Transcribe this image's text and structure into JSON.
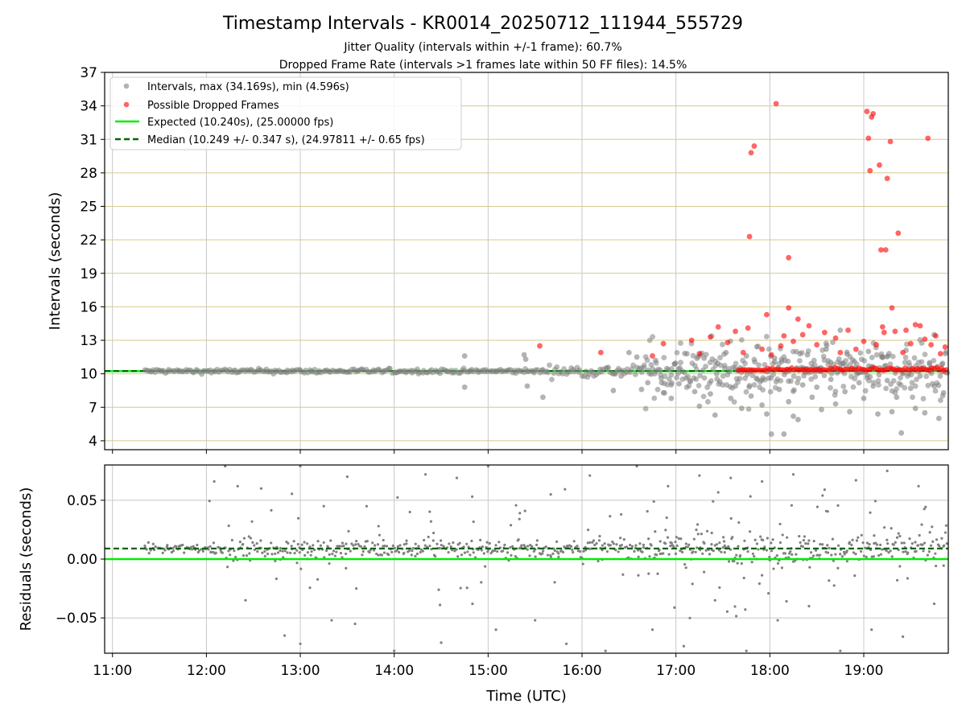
{
  "figure": {
    "title": "Timestamp Intervals - KR0014_20250712_111944_555729",
    "subtitle_1": "Jitter Quality (intervals within +/-1 frame): 60.7%",
    "subtitle_2": "Dropped Frame Rate (intervals >1 frames late within 50 FF files): 14.5%"
  },
  "colors": {
    "intervals": "#808080",
    "dropped": "#ff0000",
    "expected": "#00ee00",
    "median": "#006400",
    "hgrid_top": "#d8c98a",
    "grid": "#c8c8c8"
  },
  "chart_data": [
    {
      "type": "scatter",
      "ylabel": "Intervals (seconds)",
      "xlim": [
        "10:55",
        "19:54"
      ],
      "ylim": [
        3.2,
        37
      ],
      "x_ticks": [
        "11:00",
        "12:00",
        "13:00",
        "14:00",
        "15:00",
        "16:00",
        "17:00",
        "18:00",
        "19:00"
      ],
      "y_ticks": [
        4,
        7,
        10,
        13,
        16,
        19,
        22,
        25,
        28,
        31,
        34,
        37
      ],
      "y_ticklabels": [
        "4",
        "7",
        "10",
        "13",
        "16",
        "19",
        "22",
        "25",
        "28",
        "31",
        "34",
        "37"
      ],
      "grid": true,
      "legend_position": "top-left",
      "legend": {
        "intervals": "Intervals, max (34.169s), min (4.596s)",
        "dropped": "Possible Dropped Frames",
        "expected": "Expected (10.240s), (25.00000 fps)",
        "median": "Median (10.249 +/- 0.347 s), (24.97811 +/- 0.65 fps)"
      },
      "expected_value": 10.24,
      "median_value": 10.249,
      "series": [
        {
          "name": "Intervals, max (34.169s), min (4.596s)",
          "points": [
            [
              "14:45",
              11.6
            ],
            [
              "14:45",
              8.8
            ],
            [
              "15:23",
              11.7
            ],
            [
              "15:24",
              11.3
            ],
            [
              "15:25",
              8.9
            ],
            [
              "15:35",
              7.9
            ],
            [
              "16:20",
              8.5
            ],
            [
              "16:25",
              9.8
            ],
            [
              "16:30",
              11.9
            ],
            [
              "16:35",
              11.5
            ],
            [
              "16:38",
              8.6
            ],
            [
              "16:42",
              9.2
            ],
            [
              "16:47",
              11.2
            ],
            [
              "16:52",
              8.3
            ],
            [
              "16:57",
              7.8
            ],
            [
              "17:02",
              9.1
            ],
            [
              "17:07",
              11.8
            ],
            [
              "17:12",
              8.4
            ],
            [
              "17:15",
              7.1
            ],
            [
              "17:18",
              11.4
            ],
            [
              "17:22",
              8.2
            ],
            [
              "17:25",
              6.3
            ],
            [
              "17:28",
              9.3
            ],
            [
              "17:32",
              11.9
            ],
            [
              "17:35",
              7.8
            ],
            [
              "17:38",
              8.9
            ],
            [
              "17:42",
              6.9
            ],
            [
              "17:45",
              11.6
            ],
            [
              "17:48",
              8.0
            ],
            [
              "17:52",
              9.5
            ],
            [
              "17:55",
              7.2
            ],
            [
              "17:58",
              6.4
            ],
            [
              "18:01",
              4.6
            ],
            [
              "18:03",
              11.4
            ],
            [
              "18:06",
              8.6
            ],
            [
              "18:09",
              4.6
            ],
            [
              "18:12",
              7.5
            ],
            [
              "18:15",
              6.2
            ],
            [
              "18:18",
              5.9
            ],
            [
              "18:21",
              9.0
            ],
            [
              "18:24",
              11.7
            ],
            [
              "18:27",
              7.9
            ],
            [
              "18:30",
              8.8
            ],
            [
              "18:33",
              6.8
            ],
            [
              "18:36",
              12.2
            ],
            [
              "18:39",
              9.5
            ],
            [
              "18:42",
              7.3
            ],
            [
              "18:45",
              13.9
            ],
            [
              "18:48",
              8.4
            ],
            [
              "18:51",
              6.6
            ],
            [
              "18:54",
              11.1
            ],
            [
              "18:57",
              9.2
            ],
            [
              "19:00",
              7.8
            ],
            [
              "19:03",
              12.0
            ],
            [
              "19:06",
              8.9
            ],
            [
              "19:09",
              6.4
            ],
            [
              "19:12",
              11.5
            ],
            [
              "19:15",
              9.4
            ],
            [
              "19:18",
              6.6
            ],
            [
              "19:21",
              7.9
            ],
            [
              "19:24",
              4.7
            ],
            [
              "19:27",
              12.1
            ],
            [
              "19:30",
              8.7
            ],
            [
              "19:33",
              6.9
            ],
            [
              "19:36",
              9.8
            ],
            [
              "19:39",
              6.5
            ],
            [
              "19:42",
              11.0
            ],
            [
              "19:45",
              13.5
            ],
            [
              "19:48",
              6.0
            ],
            [
              "19:51",
              8.3
            ]
          ]
        },
        {
          "name": "Possible Dropped Frames",
          "points": [
            [
              "15:33",
              12.5
            ],
            [
              "16:12",
              11.9
            ],
            [
              "16:45",
              11.6
            ],
            [
              "16:52",
              12.7
            ],
            [
              "17:10",
              13.0
            ],
            [
              "17:15",
              11.8
            ],
            [
              "17:22",
              13.3
            ],
            [
              "17:27",
              14.2
            ],
            [
              "17:33",
              12.8
            ],
            [
              "17:38",
              13.8
            ],
            [
              "17:43",
              11.9
            ],
            [
              "17:46",
              14.1
            ],
            [
              "17:47",
              22.3
            ],
            [
              "17:48",
              29.8
            ],
            [
              "17:50",
              30.4
            ],
            [
              "17:55",
              12.2
            ],
            [
              "17:58",
              15.3
            ],
            [
              "18:01",
              11.7
            ],
            [
              "18:04",
              34.2
            ],
            [
              "18:07",
              12.5
            ],
            [
              "18:09",
              13.4
            ],
            [
              "18:12",
              20.4
            ],
            [
              "18:12",
              15.9
            ],
            [
              "18:15",
              12.9
            ],
            [
              "18:18",
              14.9
            ],
            [
              "18:21",
              13.5
            ],
            [
              "18:25",
              14.3
            ],
            [
              "18:30",
              12.6
            ],
            [
              "18:35",
              13.7
            ],
            [
              "18:42",
              13.2
            ],
            [
              "18:45",
              11.9
            ],
            [
              "18:50",
              13.9
            ],
            [
              "18:55",
              12.2
            ],
            [
              "19:00",
              12.9
            ],
            [
              "19:02",
              33.5
            ],
            [
              "19:03",
              31.1
            ],
            [
              "19:04",
              28.2
            ],
            [
              "19:05",
              33.0
            ],
            [
              "19:06",
              33.3
            ],
            [
              "19:08",
              12.6
            ],
            [
              "19:10",
              28.7
            ],
            [
              "19:11",
              21.1
            ],
            [
              "19:12",
              14.2
            ],
            [
              "19:13",
              13.7
            ],
            [
              "19:14",
              21.1
            ],
            [
              "19:15",
              27.5
            ],
            [
              "19:17",
              30.8
            ],
            [
              "19:18",
              15.9
            ],
            [
              "19:20",
              13.8
            ],
            [
              "19:22",
              22.6
            ],
            [
              "19:25",
              11.9
            ],
            [
              "19:27",
              13.9
            ],
            [
              "19:30",
              12.7
            ],
            [
              "19:33",
              14.4
            ],
            [
              "19:36",
              14.3
            ],
            [
              "19:39",
              13.1
            ],
            [
              "19:41",
              31.1
            ],
            [
              "19:43",
              12.6
            ],
            [
              "19:46",
              13.4
            ],
            [
              "19:49",
              11.8
            ],
            [
              "19:52",
              12.4
            ]
          ]
        }
      ]
    },
    {
      "type": "scatter",
      "xlabel": "Time (UTC)",
      "ylabel": "Residuals (seconds)",
      "xlim": [
        "10:55",
        "19:54"
      ],
      "ylim": [
        -0.08,
        0.08
      ],
      "x_ticks": [
        "11:00",
        "12:00",
        "13:00",
        "14:00",
        "15:00",
        "16:00",
        "17:00",
        "18:00",
        "19:00"
      ],
      "y_ticks": [
        -0.05,
        0.0,
        0.05
      ],
      "y_ticklabels": [
        "−0.05",
        "0.00",
        "0.05"
      ],
      "grid": true,
      "expected_value": 0.0,
      "median_value": 0.009,
      "series": [
        {
          "name": "Residuals",
          "points": [
            [
              "12:05",
              0.066
            ],
            [
              "12:12",
              0.079
            ],
            [
              "12:20",
              0.062
            ],
            [
              "12:25",
              -0.035
            ],
            [
              "12:35",
              0.06
            ],
            [
              "12:50",
              -0.065
            ],
            [
              "13:00",
              0.079
            ],
            [
              "13:00",
              -0.072
            ],
            [
              "13:15",
              0.045
            ],
            [
              "13:20",
              -0.052
            ],
            [
              "13:30",
              0.07
            ],
            [
              "13:35",
              -0.055
            ],
            [
              "13:50",
              0.028
            ],
            [
              "14:00",
              -0.078
            ],
            [
              "14:10",
              0.04
            ],
            [
              "14:20",
              0.072
            ],
            [
              "14:30",
              -0.071
            ],
            [
              "14:40",
              0.069
            ],
            [
              "14:50",
              -0.038
            ],
            [
              "15:00",
              0.079
            ],
            [
              "15:05",
              -0.06
            ],
            [
              "15:20",
              0.034
            ],
            [
              "15:30",
              -0.052
            ],
            [
              "15:40",
              0.055
            ],
            [
              "15:50",
              -0.072
            ],
            [
              "16:05",
              0.071
            ],
            [
              "16:15",
              -0.078
            ],
            [
              "16:25",
              0.038
            ],
            [
              "16:35",
              0.079
            ],
            [
              "16:45",
              -0.06
            ],
            [
              "16:55",
              0.062
            ],
            [
              "17:05",
              -0.074
            ],
            [
              "17:15",
              0.071
            ],
            [
              "17:25",
              -0.035
            ],
            [
              "17:35",
              0.069
            ],
            [
              "17:45",
              -0.078
            ],
            [
              "17:55",
              0.066
            ],
            [
              "18:05",
              -0.052
            ],
            [
              "18:15",
              0.072
            ],
            [
              "18:25",
              -0.04
            ],
            [
              "18:35",
              0.059
            ],
            [
              "18:45",
              -0.078
            ],
            [
              "18:55",
              0.067
            ],
            [
              "19:05",
              -0.06
            ],
            [
              "19:15",
              0.075
            ],
            [
              "19:25",
              -0.066
            ],
            [
              "19:35",
              0.062
            ],
            [
              "19:45",
              -0.038
            ]
          ]
        }
      ]
    }
  ]
}
